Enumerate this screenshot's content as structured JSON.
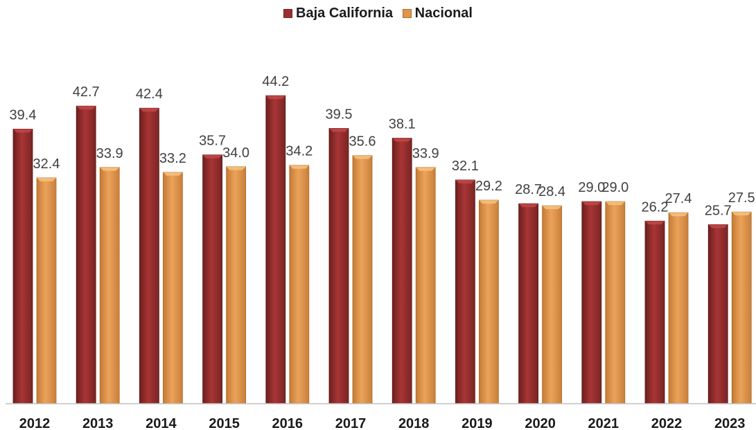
{
  "chart_data": {
    "type": "bar",
    "title": "",
    "xlabel": "",
    "ylabel": "",
    "categories": [
      "2012",
      "2013",
      "2014",
      "2015",
      "2016",
      "2017",
      "2018",
      "2019",
      "2020",
      "2021",
      "2022",
      "2023"
    ],
    "series": [
      {
        "name": "Baja California",
        "color": "#9b2f2f",
        "values": [
          39.4,
          42.7,
          42.4,
          35.7,
          44.2,
          39.5,
          38.1,
          32.1,
          28.7,
          29.0,
          26.2,
          25.7
        ]
      },
      {
        "name": "Nacional",
        "color": "#e0954a",
        "values": [
          32.4,
          33.9,
          33.2,
          34.0,
          34.2,
          35.6,
          33.9,
          29.2,
          28.4,
          29.0,
          27.4,
          27.5
        ]
      }
    ],
    "value_labels": [
      [
        "39.4",
        "42.7",
        "42.4",
        "35.7",
        "44.2",
        "39.5",
        "38.1",
        "32.1",
        "28.7",
        "29.0",
        "26.2",
        "25.7"
      ],
      [
        "32.4",
        "33.9",
        "33.2",
        "34.0",
        "34.2",
        "35.6",
        "33.9",
        "29.2",
        "28.4",
        "29.0",
        "27.4",
        "27.5"
      ]
    ],
    "ylim": [
      0,
      45.5
    ],
    "legend_position": "top",
    "grid": false
  }
}
